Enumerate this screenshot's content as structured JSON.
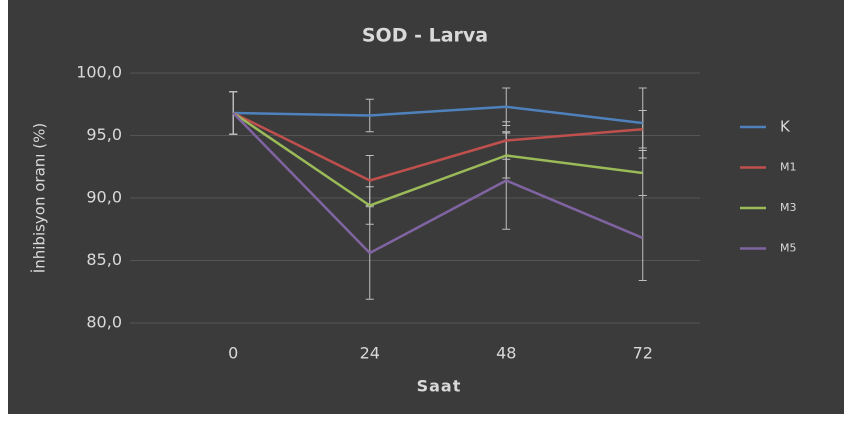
{
  "chart_data": {
    "type": "line",
    "title": "SOD - Larva",
    "x_label": "Saat",
    "y_label": "İnhibisyon oranı (%)",
    "categories": [
      "0",
      "24",
      "48",
      "72"
    ],
    "series": [
      {
        "name": "K",
        "color": "#4f81bd",
        "values": [
          96.8,
          96.6,
          97.3,
          96.0
        ],
        "errors": [
          1.7,
          1.3,
          1.5,
          2.8
        ]
      },
      {
        "name": "M1",
        "color": "#c0504d",
        "values": [
          96.8,
          91.4,
          94.6,
          95.5
        ],
        "errors": [
          1.7,
          2.0,
          1.5,
          1.5
        ]
      },
      {
        "name": "M3",
        "color": "#9bbb59",
        "values": [
          96.8,
          89.4,
          93.4,
          92.0
        ],
        "errors": [
          1.7,
          1.5,
          1.8,
          1.8
        ]
      },
      {
        "name": "M5",
        "color": "#8064a2",
        "values": [
          96.8,
          85.6,
          91.4,
          86.8
        ],
        "errors": [
          1.7,
          3.7,
          3.9,
          3.4
        ]
      }
    ],
    "ylim": [
      80,
      100
    ],
    "yticks": [
      {
        "value": 80,
        "label": "80,0"
      },
      {
        "value": 85,
        "label": "85,0"
      },
      {
        "value": 90,
        "label": "90,0"
      },
      {
        "value": 95,
        "label": "95,0"
      },
      {
        "value": 100,
        "label": "100,0"
      }
    ],
    "grid": true,
    "legend": "right"
  }
}
